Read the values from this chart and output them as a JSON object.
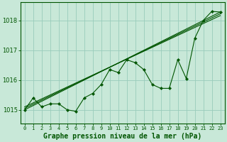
{
  "title": "Graphe pression niveau de la mer (hPa)",
  "bg_color": "#c8e8d8",
  "plot_bg_color": "#c8e8d8",
  "grid_color": "#99ccbb",
  "line_color": "#005500",
  "marker_color": "#005500",
  "xlim": [
    -0.5,
    23.5
  ],
  "ylim": [
    1014.55,
    1018.6
  ],
  "yticks": [
    1015,
    1016,
    1017,
    1018
  ],
  "xticks": [
    0,
    1,
    2,
    3,
    4,
    5,
    6,
    7,
    8,
    9,
    10,
    11,
    12,
    13,
    14,
    15,
    16,
    17,
    18,
    19,
    20,
    21,
    22,
    23
  ],
  "x": [
    0,
    1,
    2,
    3,
    4,
    5,
    6,
    7,
    8,
    9,
    10,
    11,
    12,
    13,
    14,
    15,
    16,
    17,
    18,
    19,
    20,
    21,
    22,
    23
  ],
  "y_main": [
    1015.0,
    1015.4,
    1015.1,
    1015.2,
    1015.2,
    1015.0,
    1014.95,
    1015.4,
    1015.55,
    1015.85,
    1016.35,
    1016.25,
    1016.68,
    1016.58,
    1016.35,
    1015.85,
    1015.72,
    1015.72,
    1016.68,
    1016.05,
    1017.4,
    1018.0,
    1018.3,
    1018.28
  ],
  "trend_lines": [
    {
      "x": [
        0,
        23
      ],
      "y": [
        1015.0,
        1018.28
      ]
    },
    {
      "x": [
        0,
        23
      ],
      "y": [
        1015.05,
        1018.22
      ]
    },
    {
      "x": [
        0,
        23
      ],
      "y": [
        1015.1,
        1018.16
      ]
    }
  ],
  "xtick_fontsize": 5,
  "ytick_fontsize": 6,
  "title_fontsize": 7
}
